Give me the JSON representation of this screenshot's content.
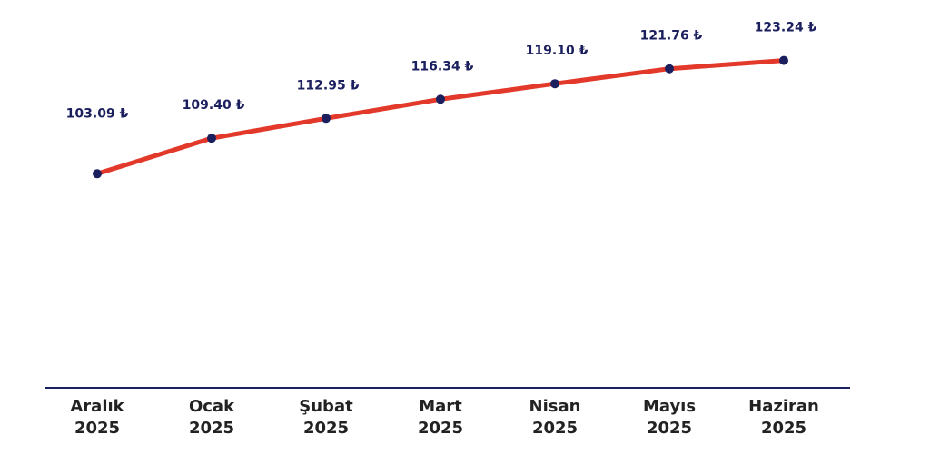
{
  "colors": {
    "line": "#e2392b",
    "marker": "#1b1f5e",
    "axis": "#1b1f5e",
    "label": "#1b1f5e",
    "category": "#222222"
  },
  "chart_data": {
    "type": "line",
    "categories": [
      [
        "Aralık",
        "2025"
      ],
      [
        "Ocak",
        "2025"
      ],
      [
        "Şubat",
        "2025"
      ],
      [
        "Mart",
        "2025"
      ],
      [
        "Nisan",
        "2025"
      ],
      [
        "Mayıs",
        "2025"
      ],
      [
        "Haziran",
        "2025"
      ]
    ],
    "values": [
      103.09,
      109.4,
      112.95,
      116.34,
      119.1,
      121.76,
      123.24
    ],
    "data_labels": [
      "103.09 ₺",
      "109.40 ₺",
      "112.95 ₺",
      "116.34 ₺",
      "119.10 ₺",
      "121.76 ₺",
      "123.24 ₺"
    ],
    "title": "",
    "xlabel": "",
    "ylabel": "",
    "ylim": [
      65,
      134
    ],
    "grid": false,
    "legend": "none"
  }
}
